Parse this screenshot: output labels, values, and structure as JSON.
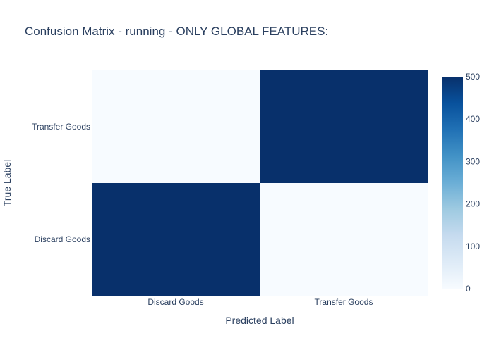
{
  "chart_data": {
    "type": "heatmap",
    "title": "Confusion Matrix - running - ONLY GLOBAL FEATURES:",
    "xlabel": "Predicted Label",
    "ylabel": "True Label",
    "x_categories": [
      "Discard Goods",
      "Transfer Goods"
    ],
    "y_categories": [
      "Discard Goods",
      "Transfer Goods"
    ],
    "z": [
      [
        500,
        0
      ],
      [
        0,
        500
      ]
    ],
    "colorscale": "Blues",
    "colorbar": {
      "range": [
        0,
        500
      ],
      "ticks": [
        "0",
        "100",
        "200",
        "300",
        "400",
        "500"
      ]
    },
    "colors": {
      "low": "#f7fbff",
      "high": "#08306b",
      "text": "#2a3f5f"
    }
  }
}
